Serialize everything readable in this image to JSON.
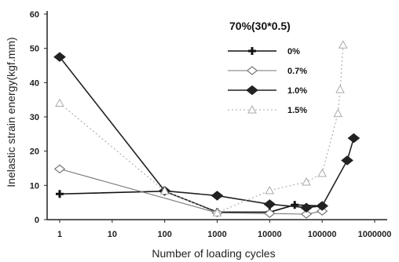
{
  "chart_data": {
    "type": "line",
    "title": "",
    "xlabel": "Number of loading cycles",
    "ylabel": "Inelastic strain energy(kgf.mm)",
    "x_scale": "log",
    "xlim": [
      1,
      1000000
    ],
    "ylim": [
      0,
      60
    ],
    "x_ticks": [
      {
        "value": 1,
        "label": "1"
      },
      {
        "value": 10,
        "label": "10"
      },
      {
        "value": 100,
        "label": "100"
      },
      {
        "value": 1000,
        "label": "1000"
      },
      {
        "value": 10000,
        "label": "10000"
      },
      {
        "value": 100000,
        "label": "100000"
      },
      {
        "value": 1000000,
        "label": "1000000"
      }
    ],
    "y_ticks": [
      {
        "value": 0,
        "label": "0"
      },
      {
        "value": 10,
        "label": "10"
      },
      {
        "value": 20,
        "label": "20"
      },
      {
        "value": 30,
        "label": "30"
      },
      {
        "value": 40,
        "label": "40"
      },
      {
        "value": 50,
        "label": "50"
      },
      {
        "value": 60,
        "label": "60"
      }
    ],
    "grid": false,
    "legend": {
      "title": "70%(30*0.5)",
      "position": "top-right"
    },
    "series": [
      {
        "name": "0%",
        "marker": "plus",
        "color": "#111111",
        "points": [
          [
            1,
            7.5
          ],
          [
            100,
            8.3
          ],
          [
            1000,
            2.2
          ],
          [
            10000,
            2.2
          ],
          [
            30000,
            4.3
          ],
          [
            100000,
            4.0
          ]
        ]
      },
      {
        "name": "0.7%",
        "marker": "diamond-open",
        "color": "#777777",
        "points": [
          [
            1,
            14.8
          ],
          [
            1000,
            2.0
          ],
          [
            10000,
            1.8
          ],
          [
            50000,
            1.6
          ],
          [
            100000,
            2.5
          ]
        ]
      },
      {
        "name": "1.0%",
        "marker": "diamond-filled",
        "color": "#222222",
        "points": [
          [
            1,
            47.5
          ],
          [
            100,
            8.4
          ],
          [
            1000,
            7.0
          ],
          [
            10000,
            4.5
          ],
          [
            50000,
            3.5
          ],
          [
            100000,
            4.0
          ],
          [
            300000,
            17.3
          ],
          [
            400000,
            23.8
          ]
        ]
      },
      {
        "name": "1.5%",
        "marker": "triangle",
        "color": "#aaaaaa",
        "points": [
          [
            1,
            34.0
          ],
          [
            100,
            8.4
          ],
          [
            1000,
            2.0
          ],
          [
            10000,
            8.5
          ],
          [
            50000,
            11.0
          ],
          [
            100000,
            13.5
          ],
          [
            200000,
            31.0
          ],
          [
            220000,
            38.0
          ],
          [
            250000,
            51.0
          ]
        ]
      }
    ]
  }
}
